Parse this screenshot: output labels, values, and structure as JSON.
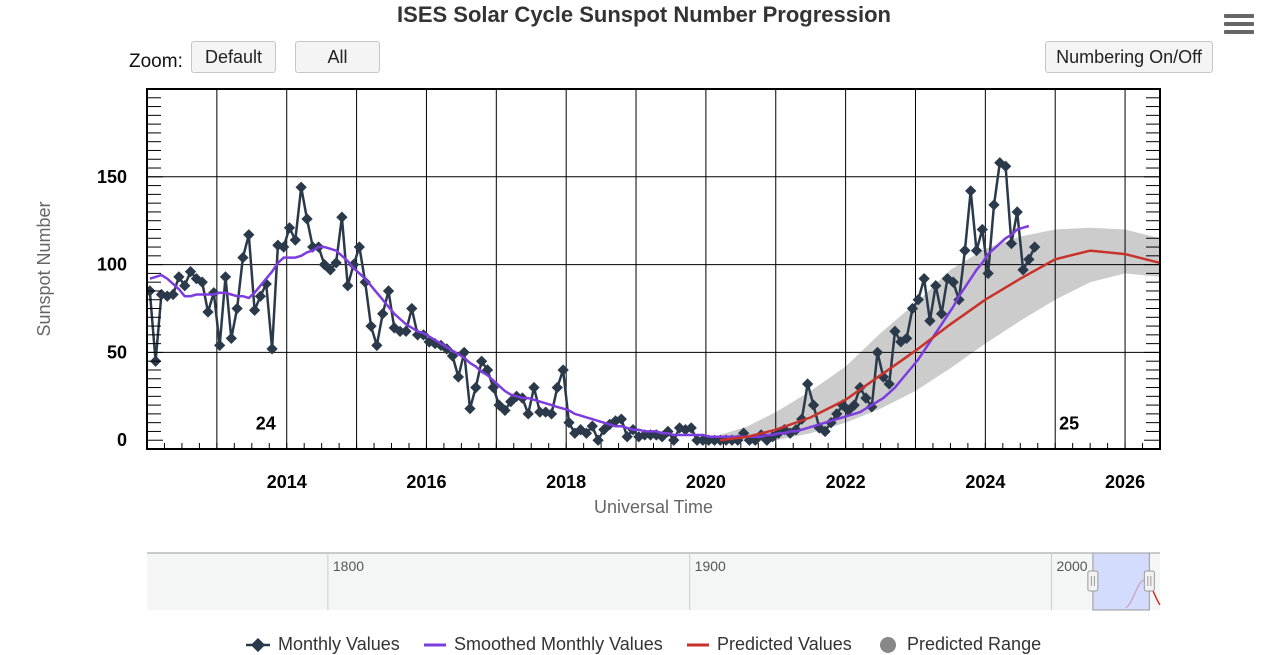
{
  "title": "ISES Solar Cycle Sunspot Number Progression",
  "zoom": {
    "label": "Zoom:",
    "default_label": "Default",
    "all_label": "All"
  },
  "numbering_label": "Numbering On/Off",
  "colors": {
    "monthly": "#2b3a4a",
    "smoothed": "#7d3cde",
    "predicted": "#c8322b",
    "range": "#cccccc",
    "navigator_mask": "#c9d3ff",
    "grid": "#000000"
  },
  "icons": {
    "menu": "hamburger-menu-icon",
    "handle": "navigator-handle-icon"
  },
  "chart_data": {
    "type": "line",
    "title": "ISES Solar Cycle Sunspot Number Progression",
    "xlabel": "Universal Time",
    "ylabel": "Sunspot Number",
    "xlim": [
      2012.0,
      2026.5
    ],
    "ylim": [
      -5,
      200
    ],
    "x_ticks": [
      2014,
      2016,
      2018,
      2020,
      2022,
      2024,
      2026
    ],
    "y_ticks": [
      0,
      50,
      100,
      150
    ],
    "grid": true,
    "legend_position": "bottom",
    "cycle_labels": [
      {
        "text": "24",
        "x": 2013.7,
        "y": 5
      },
      {
        "text": "25",
        "x": 2025.2,
        "y": 5
      }
    ],
    "series": [
      {
        "name": "Monthly Values",
        "x_start": 2012.04,
        "step": 0.0833333,
        "values": [
          85,
          45,
          83,
          82,
          83,
          93,
          88,
          96,
          92,
          90,
          73,
          84,
          54,
          93,
          58,
          75,
          104,
          117,
          74,
          82,
          89,
          52,
          111,
          110,
          121,
          114,
          144,
          126,
          110,
          110,
          100,
          97,
          101,
          127,
          88,
          100,
          110,
          90,
          65,
          54,
          72,
          85,
          64,
          62,
          62,
          75,
          60,
          60,
          56,
          55,
          54,
          52,
          48,
          36,
          50,
          18,
          30,
          45,
          40,
          30,
          20,
          17,
          22,
          25,
          24,
          15,
          30,
          16,
          16,
          15,
          30,
          40,
          10,
          4,
          6,
          4,
          8,
          0,
          6,
          9,
          11,
          12,
          2,
          6,
          2,
          3,
          3,
          3,
          2,
          5,
          0,
          7,
          6,
          7,
          0,
          0,
          0,
          0,
          0,
          0,
          0,
          0,
          4,
          0,
          0,
          3,
          0,
          2,
          4,
          6,
          4,
          6,
          12,
          32,
          20,
          7,
          5,
          10,
          15,
          20,
          17,
          20,
          30,
          24,
          19,
          50,
          36,
          32,
          62,
          56,
          58,
          75,
          80,
          92,
          68,
          88,
          72,
          92,
          90,
          80,
          108,
          142,
          108,
          120,
          95,
          134,
          158,
          156,
          112,
          130,
          97,
          103,
          110
        ]
      },
      {
        "name": "Smoothed Monthly Values",
        "x_start": 2012.04,
        "step": 0.0833333,
        "values": [
          92,
          93,
          94,
          92,
          89,
          86,
          82,
          82,
          83,
          83,
          83,
          83,
          84,
          84,
          83,
          82,
          82,
          81,
          84,
          88,
          92,
          96,
          101,
          104,
          104,
          104,
          105,
          107,
          108,
          110,
          110,
          109,
          108,
          105,
          102,
          98,
          95,
          92,
          88,
          84,
          80,
          76,
          72,
          69,
          66,
          64,
          62,
          61,
          59,
          57,
          55,
          53,
          51,
          49,
          47,
          44,
          42,
          39,
          37,
          34,
          31,
          28,
          26,
          25,
          24,
          24,
          23,
          22,
          21,
          20,
          19,
          18,
          17,
          15,
          14,
          13,
          12,
          11,
          10,
          9,
          8,
          8,
          7,
          6,
          6,
          5,
          5,
          5,
          4,
          4,
          3,
          3,
          3,
          3,
          3,
          3,
          2,
          2,
          2,
          2,
          2,
          2,
          2,
          2,
          2,
          2,
          3,
          3,
          4,
          4,
          5,
          5,
          6,
          7,
          8,
          9,
          10,
          11,
          12,
          13,
          14,
          15,
          16,
          18,
          20,
          22,
          24,
          27,
          30,
          34,
          38,
          42,
          46,
          51,
          56,
          61,
          66,
          71,
          76,
          82,
          87,
          92,
          97,
          101,
          106,
          109,
          112,
          115,
          117,
          120,
          121,
          122
        ]
      },
      {
        "name": "Predicted Values",
        "points": [
          [
            2020.2,
            0
          ],
          [
            2020.6,
            2
          ],
          [
            2021.0,
            6
          ],
          [
            2021.5,
            13
          ],
          [
            2022.0,
            23
          ],
          [
            2022.5,
            37
          ],
          [
            2023.0,
            51
          ],
          [
            2023.5,
            66
          ],
          [
            2024.0,
            80
          ],
          [
            2024.5,
            92
          ],
          [
            2025.0,
            103
          ],
          [
            2025.5,
            108
          ],
          [
            2026.0,
            106
          ],
          [
            2026.5,
            101
          ]
        ]
      },
      {
        "name": "Predicted Range",
        "upper": [
          [
            2020.2,
            3
          ],
          [
            2020.6,
            8
          ],
          [
            2021.0,
            16
          ],
          [
            2021.5,
            28
          ],
          [
            2022.0,
            42
          ],
          [
            2022.5,
            61
          ],
          [
            2023.0,
            78
          ],
          [
            2023.5,
            97
          ],
          [
            2024.0,
            109
          ],
          [
            2024.5,
            116
          ],
          [
            2025.0,
            120
          ],
          [
            2025.5,
            121
          ],
          [
            2026.0,
            120
          ],
          [
            2026.5,
            115
          ]
        ],
        "lower": [
          [
            2020.2,
            0
          ],
          [
            2020.6,
            0
          ],
          [
            2021.0,
            0
          ],
          [
            2021.5,
            4
          ],
          [
            2022.0,
            10
          ],
          [
            2022.5,
            18
          ],
          [
            2023.0,
            28
          ],
          [
            2023.5,
            41
          ],
          [
            2024.0,
            55
          ],
          [
            2024.5,
            68
          ],
          [
            2025.0,
            80
          ],
          [
            2025.5,
            90
          ],
          [
            2026.0,
            95
          ],
          [
            2026.5,
            93
          ]
        ]
      }
    ],
    "navigator": {
      "labels": [
        "1800",
        "1900",
        "2000"
      ],
      "years": [
        1750,
        2030
      ],
      "selected": [
        2012.0,
        2026.5
      ]
    }
  },
  "legend": [
    {
      "label": "Monthly Values"
    },
    {
      "label": "Smoothed Monthly Values"
    },
    {
      "label": "Predicted Values"
    },
    {
      "label": "Predicted Range"
    }
  ]
}
